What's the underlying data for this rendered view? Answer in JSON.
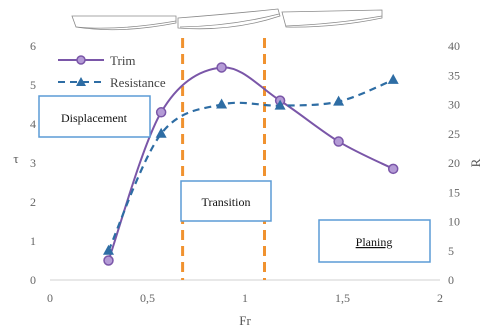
{
  "chart_data": {
    "type": "line",
    "xlabel": "Fr",
    "ylabel_left": "τ",
    "ylabel_right": "R",
    "xlim": [
      0,
      2
    ],
    "ylim_left": [
      0,
      6
    ],
    "ylim_right": [
      0,
      40
    ],
    "x_ticks": [
      "0",
      "0,5",
      "1",
      "1,5",
      "2"
    ],
    "x_tick_values": [
      0,
      0.5,
      1,
      1.5,
      2
    ],
    "y_left_ticks": [
      "0",
      "1",
      "2",
      "3",
      "4",
      "5",
      "6"
    ],
    "y_right_ticks": [
      "0",
      "5",
      "10",
      "15",
      "20",
      "25",
      "30",
      "35",
      "40"
    ],
    "grid": false,
    "legend_position": "top-left",
    "series": [
      {
        "name": "Trim",
        "axis": "left",
        "style": "solid line, circle markers",
        "color": "#7a56a8",
        "x": [
          0.3,
          0.57,
          0.88,
          1.18,
          1.48,
          1.76
        ],
        "y": [
          0.5,
          4.3,
          5.45,
          4.6,
          3.55,
          2.85
        ]
      },
      {
        "name": "Resistance",
        "axis": "right",
        "style": "dashed line, triangle markers",
        "color": "#2e6da4",
        "x": [
          0.3,
          0.57,
          0.88,
          1.18,
          1.48,
          1.76
        ],
        "y": [
          5,
          25,
          30,
          29.8,
          30.5,
          34.2
        ]
      }
    ],
    "regions": [
      {
        "label": "Displacement"
      },
      {
        "label": "Transition"
      },
      {
        "label": "Planing"
      }
    ],
    "region_boundaries_x": [
      0.68,
      1.1
    ],
    "boundary_color": "#f0922f"
  }
}
